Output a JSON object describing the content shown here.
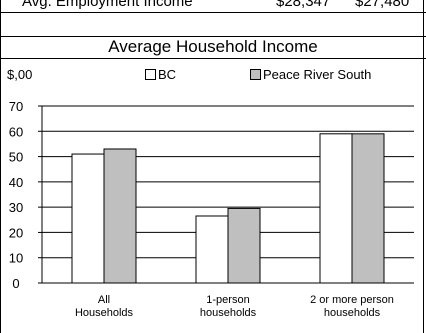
{
  "table_row": {
    "label": "Avg. Employment Income",
    "values": [
      "$28,347",
      "$27,480"
    ]
  },
  "chart_data": {
    "type": "bar",
    "title": "Average Household Income",
    "unit_label": "$,00",
    "categories": [
      [
        "All",
        "Households"
      ],
      [
        "1-person",
        "households"
      ],
      [
        "2 or more person",
        "households"
      ]
    ],
    "series": [
      {
        "name": "BC",
        "color": "#ffffff",
        "values": [
          51,
          26.5,
          59
        ]
      },
      {
        "name": "Peace River South",
        "color": "#bfbfbf",
        "values": [
          53,
          29.5,
          59
        ]
      }
    ],
    "ylim": [
      0,
      70
    ],
    "yticks": [
      0,
      10,
      20,
      30,
      40,
      50,
      60,
      70
    ],
    "grid": true
  }
}
